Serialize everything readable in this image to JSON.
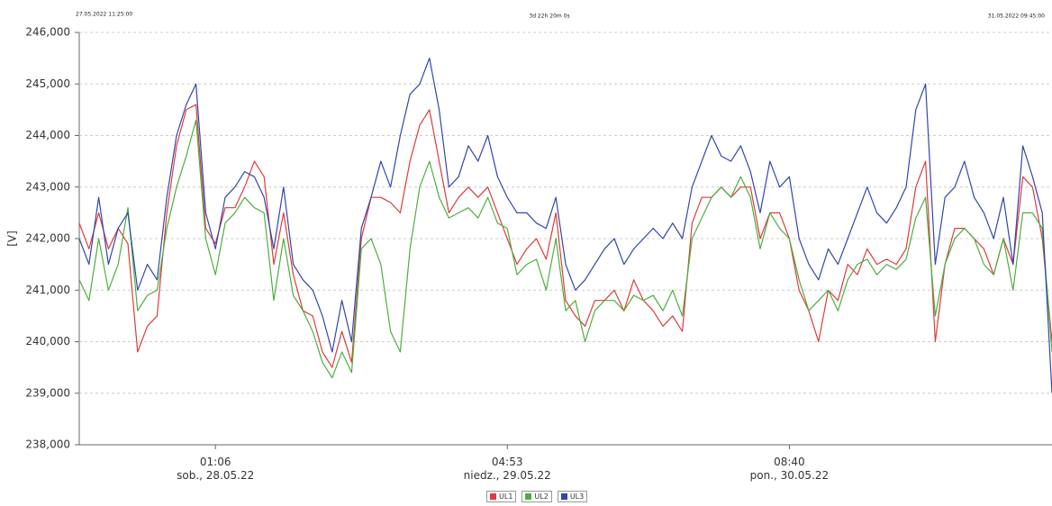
{
  "chart_data": {
    "type": "line",
    "start_label": "27.05.2022 11:25:00",
    "span_label": "3d 22h 20m 0s",
    "end_label": "31.05.2022 09:45:00",
    "ylabel": "[V]",
    "ylim": [
      238,
      246
    ],
    "yticks": [
      {
        "value": 238,
        "label": "238,000"
      },
      {
        "value": 239,
        "label": "239,000"
      },
      {
        "value": 240,
        "label": "240,000"
      },
      {
        "value": 241,
        "label": "241,000"
      },
      {
        "value": 242,
        "label": "242,000"
      },
      {
        "value": 243,
        "label": "243,000"
      },
      {
        "value": 244,
        "label": "244,000"
      },
      {
        "value": 245,
        "label": "245,000"
      },
      {
        "value": 246,
        "label": "246,000"
      }
    ],
    "grid": true,
    "categories": [
      null,
      null,
      null,
      null,
      null,
      null,
      null,
      null,
      null,
      null,
      null,
      null,
      null,
      null,
      "01:06\nsob., 28.05.22",
      null,
      null,
      null,
      null,
      null,
      null,
      null,
      null,
      null,
      null,
      null,
      null,
      null,
      null,
      null,
      null,
      null,
      null,
      null,
      null,
      null,
      null,
      null,
      null,
      null,
      null,
      null,
      null,
      null,
      "04:53\nniedz., 29.05.22",
      null,
      null,
      null,
      null,
      null,
      null,
      null,
      null,
      null,
      null,
      null,
      null,
      null,
      null,
      null,
      null,
      null,
      null,
      null,
      null,
      null,
      null,
      null,
      null,
      null,
      null,
      null,
      null,
      "08:40\npon., 30.05.22",
      null,
      null,
      null,
      null,
      null,
      null,
      null,
      null,
      null,
      null,
      null,
      null,
      null,
      null,
      null,
      null,
      null,
      null,
      null,
      null,
      null,
      null,
      null,
      null,
      null,
      null,
      null
    ],
    "series": [
      {
        "name": "UL1",
        "color": "#e03a3a",
        "values": [
          242.3,
          241.8,
          242.5,
          241.8,
          242.2,
          241.9,
          239.8,
          240.3,
          240.5,
          242.5,
          243.8,
          244.5,
          244.6,
          242.2,
          241.9,
          242.6,
          242.6,
          243.0,
          243.5,
          243.2,
          241.5,
          242.5,
          241.3,
          240.6,
          240.5,
          239.8,
          239.5,
          240.2,
          239.6,
          242.0,
          242.8,
          242.8,
          242.7,
          242.5,
          243.5,
          244.2,
          244.5,
          243.5,
          242.5,
          242.8,
          243.0,
          242.8,
          243.0,
          242.5,
          242.0,
          241.5,
          241.8,
          242.0,
          241.6,
          242.5,
          240.8,
          240.5,
          240.3,
          240.8,
          240.8,
          241.0,
          240.6,
          241.2,
          240.8,
          240.6,
          240.3,
          240.5,
          240.2,
          242.3,
          242.8,
          242.8,
          243.0,
          242.8,
          243.0,
          243.0,
          242.0,
          242.5,
          242.5,
          242.0,
          241.0,
          240.6,
          240.0,
          241.0,
          240.8,
          241.5,
          241.3,
          241.8,
          241.5,
          241.6,
          241.5,
          241.8,
          243.0,
          243.5,
          240.0,
          241.5,
          242.2,
          242.2,
          242.0,
          241.8,
          241.3,
          242.0,
          241.5,
          243.2,
          243.0,
          242.0,
          240.0
        ]
      },
      {
        "name": "UL2",
        "color": "#4caf3e",
        "values": [
          241.2,
          240.8,
          242.0,
          241.0,
          241.5,
          242.6,
          240.6,
          240.9,
          241.0,
          242.2,
          243.0,
          243.6,
          244.3,
          242.0,
          241.3,
          242.3,
          242.5,
          242.8,
          242.6,
          242.5,
          240.8,
          242.0,
          240.9,
          240.6,
          240.2,
          239.6,
          239.3,
          239.8,
          239.4,
          241.8,
          242.0,
          241.5,
          240.2,
          239.8,
          241.8,
          243.0,
          243.5,
          242.8,
          242.4,
          242.5,
          242.6,
          242.4,
          242.8,
          242.3,
          242.2,
          241.3,
          241.5,
          241.6,
          241.0,
          242.0,
          240.6,
          240.8,
          240.0,
          240.6,
          240.8,
          240.8,
          240.6,
          240.9,
          240.8,
          240.9,
          240.6,
          241.0,
          240.5,
          242.0,
          242.4,
          242.8,
          243.0,
          242.8,
          243.2,
          242.8,
          241.8,
          242.5,
          242.2,
          242.0,
          241.2,
          240.6,
          240.8,
          241.0,
          240.6,
          241.2,
          241.5,
          241.6,
          241.3,
          241.5,
          241.4,
          241.6,
          242.4,
          242.8,
          240.5,
          241.5,
          242.0,
          242.2,
          242.0,
          241.5,
          241.3,
          242.0,
          241.0,
          242.5,
          242.5,
          242.2,
          239.8
        ]
      },
      {
        "name": "UL3",
        "color": "#2f47b0",
        "values": [
          242.0,
          241.5,
          242.8,
          241.5,
          242.2,
          242.5,
          241.0,
          241.5,
          241.2,
          242.8,
          244.0,
          244.6,
          245.0,
          242.5,
          241.8,
          242.8,
          243.0,
          243.3,
          243.2,
          242.8,
          241.8,
          243.0,
          241.5,
          241.2,
          241.0,
          240.5,
          239.8,
          240.8,
          240.0,
          242.2,
          242.8,
          243.5,
          243.0,
          244.0,
          244.8,
          245.0,
          245.5,
          244.5,
          243.0,
          243.2,
          243.8,
          243.5,
          244.0,
          243.2,
          242.8,
          242.5,
          242.5,
          242.3,
          242.2,
          242.8,
          241.5,
          241.0,
          241.2,
          241.5,
          241.8,
          242.0,
          241.5,
          241.8,
          242.0,
          242.2,
          242.0,
          242.3,
          242.0,
          243.0,
          243.5,
          244.0,
          243.6,
          243.5,
          243.8,
          243.3,
          242.5,
          243.5,
          243.0,
          243.2,
          242.0,
          241.5,
          241.2,
          241.8,
          241.5,
          242.0,
          242.5,
          243.0,
          242.5,
          242.3,
          242.6,
          243.0,
          244.5,
          245.0,
          241.5,
          242.8,
          243.0,
          243.5,
          242.8,
          242.5,
          242.0,
          242.8,
          241.5,
          243.8,
          243.2,
          242.5,
          239.0
        ]
      }
    ]
  }
}
